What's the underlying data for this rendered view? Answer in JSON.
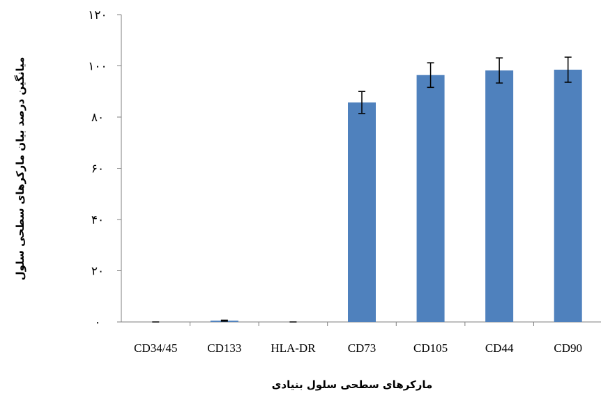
{
  "chart_data": {
    "type": "bar",
    "title": "",
    "xlabel": "مارکرهای سطحی سلول بنیادی",
    "ylabel": "میانگین درصد بیان مارکرهای سطحی سلول",
    "categories": [
      "CD34/45",
      "CD133",
      "HLA-DR",
      "CD73",
      "CD105",
      "CD44",
      "CD90"
    ],
    "values": [
      0,
      0.5,
      0,
      85.7,
      96.4,
      98.2,
      98.5
    ],
    "errors": [
      0,
      0.2,
      0,
      4.3,
      4.8,
      4.9,
      4.9
    ],
    "ylim": [
      0,
      120
    ],
    "yticks": [
      0,
      20,
      40,
      60,
      80,
      100,
      120
    ],
    "ytick_labels": [
      "٠",
      "٢٠",
      "۴٠",
      "۶٠",
      "٨٠",
      "١٠٠",
      "١٢٠"
    ],
    "bar_color": "#4f81bd",
    "grid": false,
    "legend": "none"
  }
}
